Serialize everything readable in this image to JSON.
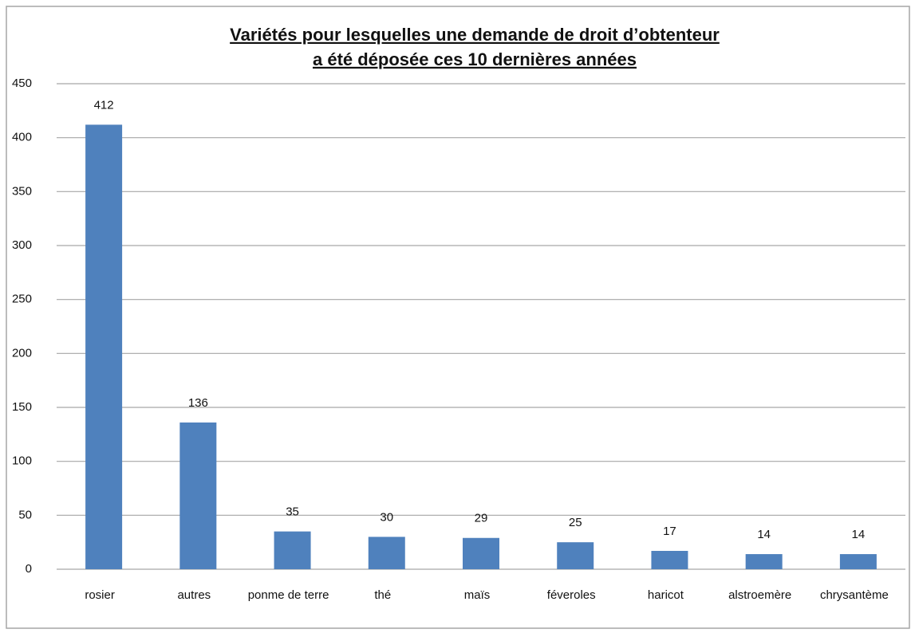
{
  "chart_data": {
    "type": "bar",
    "title": [
      "Variétés pour lesquelles une demande de droit d’obtenteur",
      "a été déposée ces 10 dernières années"
    ],
    "categories": [
      "rosier",
      "autres",
      "ponme de terre",
      "thé",
      "maïs",
      "féveroles",
      "haricot",
      "alstroemère",
      "chrysantème"
    ],
    "values": [
      412,
      136,
      35,
      30,
      29,
      25,
      17,
      14,
      14
    ],
    "color": "#4f81bd",
    "ylim": [
      0,
      450
    ],
    "yticks": [
      0,
      50,
      100,
      150,
      200,
      250,
      300,
      350,
      400,
      450
    ],
    "grid": true
  }
}
